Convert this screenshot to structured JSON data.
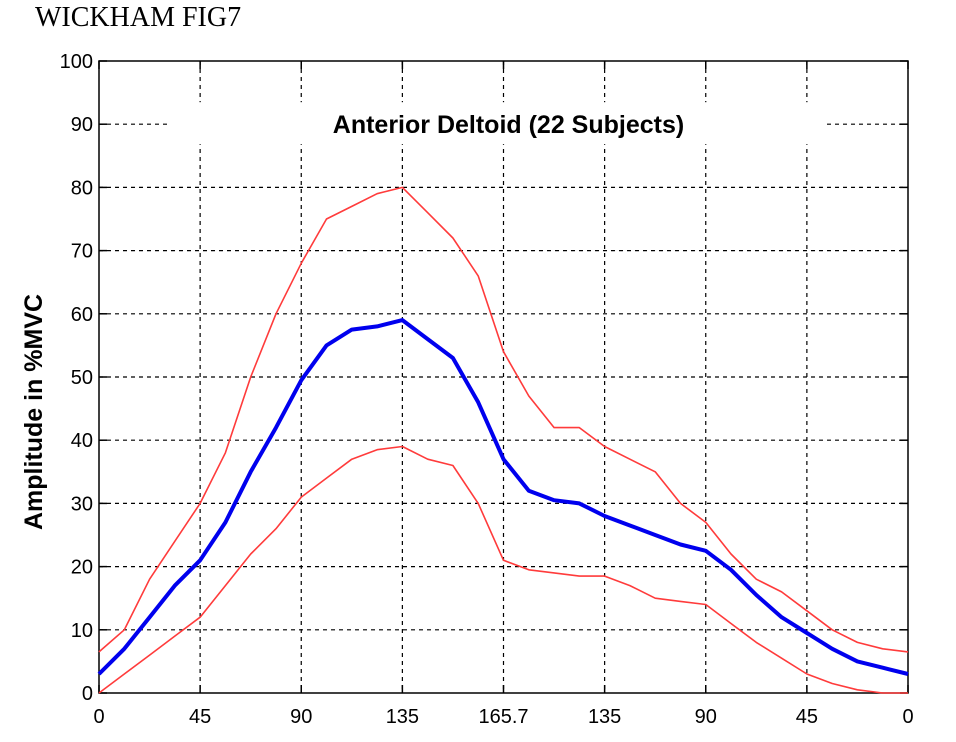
{
  "figure_label": "WICKHAM FIG7",
  "chart_data": {
    "type": "line",
    "title": "Anterior Deltoid (22 Subjects)",
    "xlabel": "",
    "ylabel": "Amplitude in %MVC",
    "ylim": [
      0,
      100
    ],
    "yticks": [
      "0",
      "10",
      "20",
      "30",
      "40",
      "50",
      "60",
      "70",
      "80",
      "90",
      "100"
    ],
    "xticks": [
      "0",
      "45",
      "90",
      "135",
      "165.7",
      "135",
      "90",
      "45",
      "0"
    ],
    "grid": true,
    "x_note": "x values are positions along the tick sequence (0 = first tick '0', 8 = last tick '0')",
    "colors": {
      "mean": "#0000ee",
      "bounds": "#ff3b3b",
      "grid": "#000000"
    },
    "series": [
      {
        "role": "upper",
        "x": [
          0,
          0.25,
          0.5,
          0.75,
          1,
          1.25,
          1.5,
          1.75,
          2,
          2.25,
          2.5,
          2.75,
          3,
          3.25,
          3.5,
          3.75,
          4,
          4.25,
          4.5,
          4.75,
          5,
          5.25,
          5.5,
          5.75,
          6,
          6.25,
          6.5,
          6.75,
          7,
          7.25,
          7.5,
          7.75,
          8
        ],
        "values": [
          6.5,
          10,
          18,
          24,
          30,
          38,
          50,
          60,
          68,
          75,
          77,
          79,
          80,
          76,
          72,
          66,
          54,
          47,
          42,
          42,
          39,
          37,
          35,
          30,
          27,
          22,
          18,
          16,
          13,
          10,
          8,
          7,
          6.5
        ]
      },
      {
        "role": "mean",
        "x": [
          0,
          0.25,
          0.5,
          0.75,
          1,
          1.25,
          1.5,
          1.75,
          2,
          2.25,
          2.5,
          2.75,
          3,
          3.25,
          3.5,
          3.75,
          4,
          4.25,
          4.5,
          4.75,
          5,
          5.25,
          5.5,
          5.75,
          6,
          6.25,
          6.5,
          6.75,
          7,
          7.25,
          7.5,
          7.75,
          8
        ],
        "values": [
          3,
          7,
          12,
          17,
          21,
          27,
          35,
          42,
          49.5,
          55,
          57.5,
          58,
          59,
          56,
          53,
          46,
          37,
          32,
          30.5,
          30,
          28,
          26.5,
          25,
          23.5,
          22.5,
          19.5,
          15.5,
          12,
          9.5,
          7,
          5,
          4,
          3
        ]
      },
      {
        "role": "lower",
        "x": [
          0,
          0.25,
          0.5,
          0.75,
          1,
          1.25,
          1.5,
          1.75,
          2,
          2.25,
          2.5,
          2.75,
          3,
          3.25,
          3.5,
          3.75,
          4,
          4.25,
          4.5,
          4.75,
          5,
          5.25,
          5.5,
          5.75,
          6,
          6.25,
          6.5,
          6.75,
          7,
          7.25,
          7.5,
          7.75,
          8
        ],
        "values": [
          0,
          3,
          6,
          9,
          12,
          17,
          22,
          26,
          31,
          34,
          37,
          38.5,
          39,
          37,
          36,
          30,
          21,
          19.5,
          19,
          18.5,
          18.5,
          17,
          15,
          14.5,
          14,
          11,
          8,
          5.5,
          3,
          1.5,
          0.5,
          0,
          0
        ]
      }
    ]
  }
}
